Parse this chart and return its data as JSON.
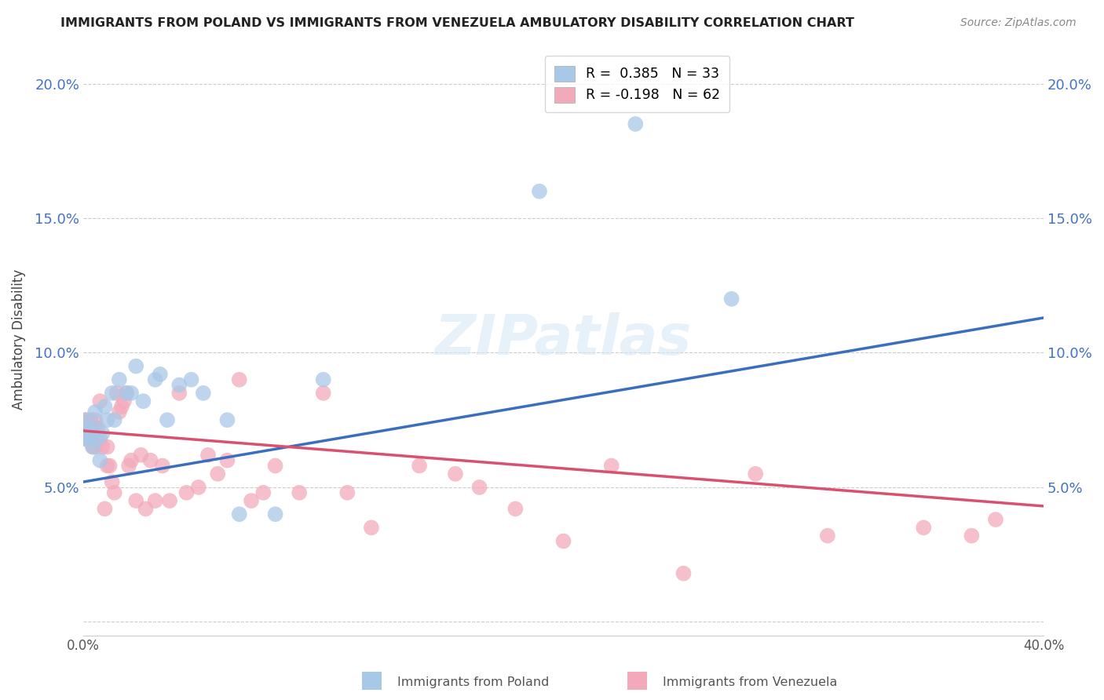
{
  "title": "IMMIGRANTS FROM POLAND VS IMMIGRANTS FROM VENEZUELA AMBULATORY DISABILITY CORRELATION CHART",
  "source": "Source: ZipAtlas.com",
  "ylabel": "Ambulatory Disability",
  "yticks": [
    0.0,
    0.05,
    0.1,
    0.15,
    0.2
  ],
  "ytick_labels": [
    "",
    "5.0%",
    "10.0%",
    "15.0%",
    "20.0%"
  ],
  "xlim": [
    0.0,
    0.4
  ],
  "ylim": [
    -0.005,
    0.215
  ],
  "poland_color": "#A8C8E8",
  "venezuela_color": "#F2AABB",
  "poland_line_color": "#3A6FBF",
  "venezuela_line_color": "#D95070",
  "poland_R": 0.385,
  "poland_N": 33,
  "venezuela_R": -0.198,
  "venezuela_N": 62,
  "watermark": "ZIPatlas",
  "poland_x": [
    0.001,
    0.001,
    0.002,
    0.002,
    0.003,
    0.004,
    0.005,
    0.005,
    0.006,
    0.007,
    0.008,
    0.009,
    0.01,
    0.012,
    0.013,
    0.015,
    0.018,
    0.02,
    0.022,
    0.025,
    0.03,
    0.032,
    0.035,
    0.04,
    0.045,
    0.05,
    0.06,
    0.065,
    0.08,
    0.1,
    0.19,
    0.23,
    0.27
  ],
  "poland_y": [
    0.068,
    0.075,
    0.072,
    0.068,
    0.07,
    0.065,
    0.072,
    0.078,
    0.068,
    0.06,
    0.07,
    0.08,
    0.075,
    0.085,
    0.075,
    0.09,
    0.085,
    0.085,
    0.095,
    0.082,
    0.09,
    0.092,
    0.075,
    0.088,
    0.09,
    0.085,
    0.075,
    0.04,
    0.04,
    0.09,
    0.16,
    0.185,
    0.12
  ],
  "venezuela_x": [
    0.001,
    0.001,
    0.001,
    0.002,
    0.002,
    0.003,
    0.003,
    0.004,
    0.004,
    0.005,
    0.005,
    0.005,
    0.006,
    0.007,
    0.007,
    0.008,
    0.009,
    0.01,
    0.01,
    0.011,
    0.012,
    0.013,
    0.014,
    0.015,
    0.016,
    0.017,
    0.018,
    0.019,
    0.02,
    0.022,
    0.024,
    0.026,
    0.028,
    0.03,
    0.033,
    0.036,
    0.04,
    0.043,
    0.048,
    0.052,
    0.056,
    0.06,
    0.065,
    0.07,
    0.075,
    0.08,
    0.09,
    0.1,
    0.11,
    0.12,
    0.14,
    0.155,
    0.165,
    0.18,
    0.2,
    0.22,
    0.25,
    0.28,
    0.31,
    0.35,
    0.37,
    0.38
  ],
  "venezuela_y": [
    0.072,
    0.068,
    0.075,
    0.07,
    0.072,
    0.068,
    0.075,
    0.065,
    0.072,
    0.068,
    0.065,
    0.075,
    0.072,
    0.068,
    0.082,
    0.065,
    0.042,
    0.058,
    0.065,
    0.058,
    0.052,
    0.048,
    0.085,
    0.078,
    0.08,
    0.082,
    0.085,
    0.058,
    0.06,
    0.045,
    0.062,
    0.042,
    0.06,
    0.045,
    0.058,
    0.045,
    0.085,
    0.048,
    0.05,
    0.062,
    0.055,
    0.06,
    0.09,
    0.045,
    0.048,
    0.058,
    0.048,
    0.085,
    0.048,
    0.035,
    0.058,
    0.055,
    0.05,
    0.042,
    0.03,
    0.058,
    0.018,
    0.055,
    0.032,
    0.035,
    0.032,
    0.038
  ],
  "poland_line_x0": 0.0,
  "poland_line_y0": 0.052,
  "poland_line_x1": 0.4,
  "poland_line_y1": 0.113,
  "venezuela_line_x0": 0.0,
  "venezuela_line_y0": 0.071,
  "venezuela_line_x1": 0.4,
  "venezuela_line_y1": 0.043
}
